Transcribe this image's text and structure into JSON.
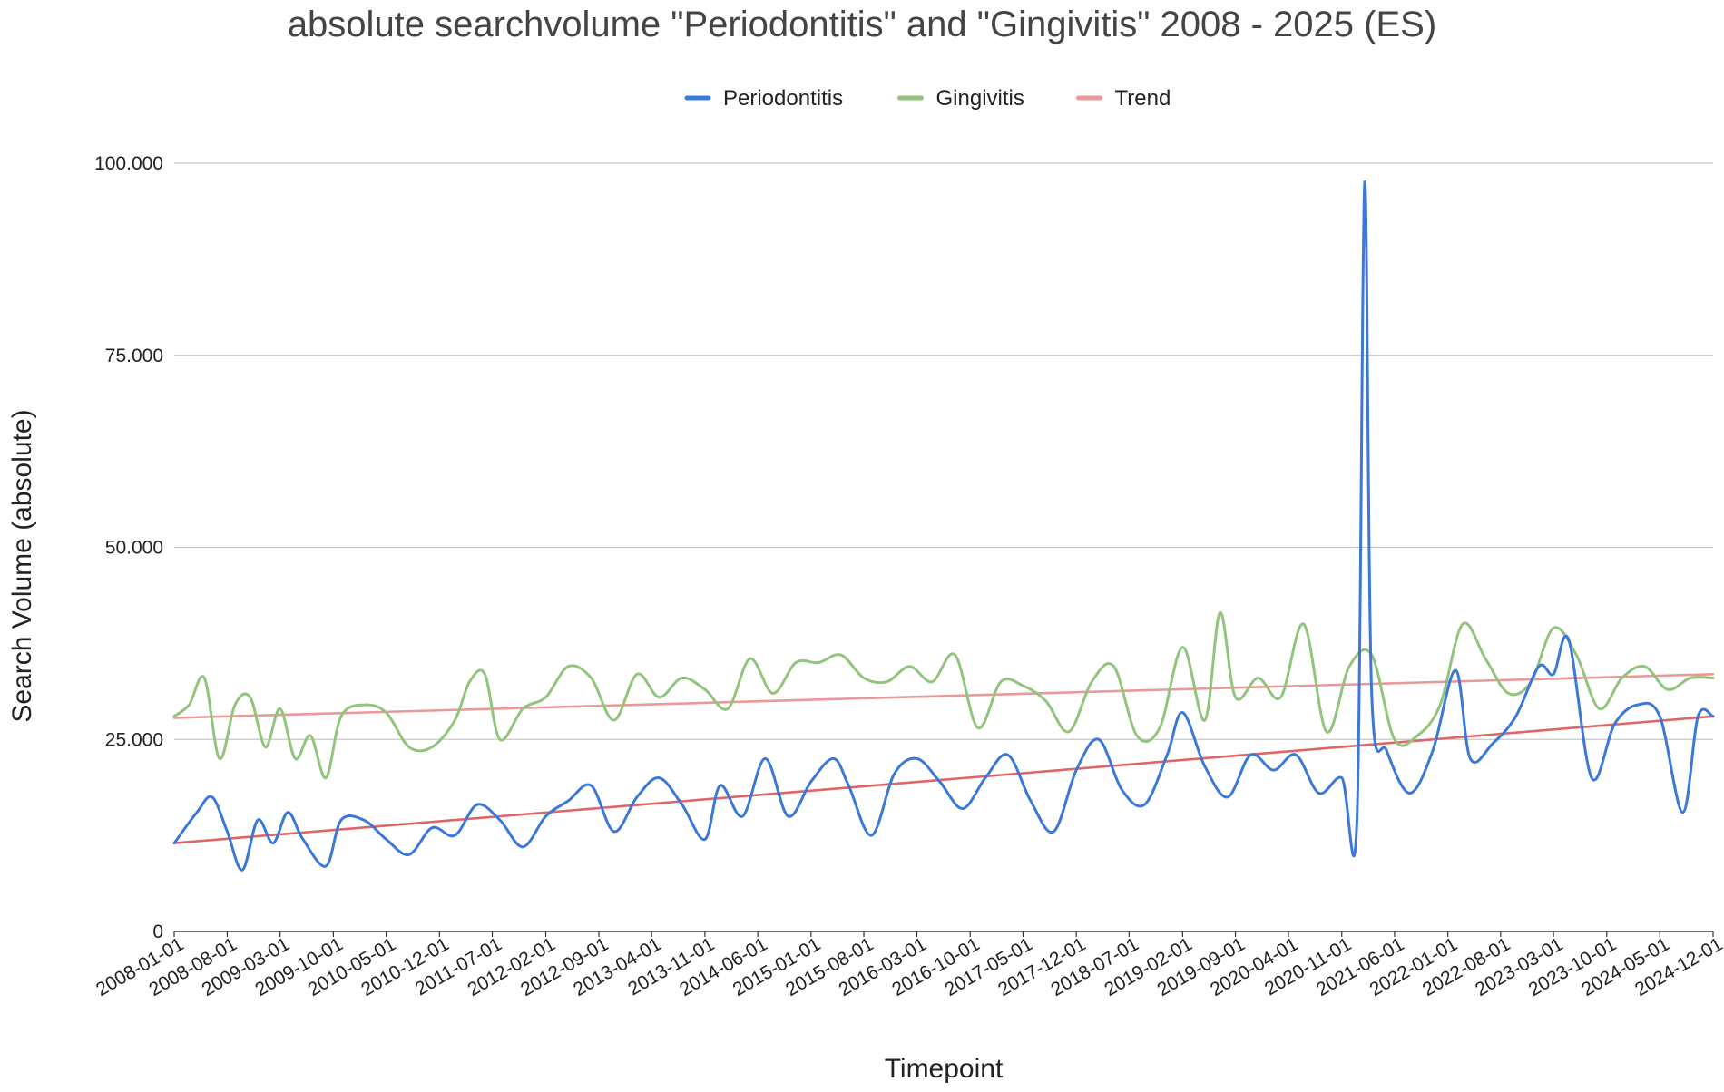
{
  "chart_data": {
    "type": "line",
    "title": "absolute searchvolume \"Periodontitis\" and \"Gingivitis\" 2008 - 2025 (ES)",
    "xlabel": "Timepoint",
    "ylabel": "Search Volume (absolute)",
    "ylim": [
      0,
      100000
    ],
    "y_ticks": [
      {
        "value": 0,
        "label": "0"
      },
      {
        "value": 25000,
        "label": "25.000"
      },
      {
        "value": 50000,
        "label": "50.000"
      },
      {
        "value": 75000,
        "label": "75.000"
      },
      {
        "value": 100000,
        "label": "100.000"
      }
    ],
    "x_tick_labels": [
      "2008-01-01",
      "2008-08-01",
      "2009-03-01",
      "2009-10-01",
      "2010-05-01",
      "2010-12-01",
      "2011-07-01",
      "2012-02-01",
      "2012-09-01",
      "2013-04-01",
      "2013-11-01",
      "2014-06-01",
      "2015-01-01",
      "2015-08-01",
      "2016-03-01",
      "2016-10-01",
      "2017-05-01",
      "2017-12-01",
      "2018-07-01",
      "2019-02-01",
      "2019-09-01",
      "2020-04-01",
      "2020-11-01",
      "2021-06-01",
      "2022-01-01",
      "2022-08-01",
      "2023-03-01",
      "2023-10-01",
      "2024-05-01",
      "2024-12-01"
    ],
    "x_start": "2008-01-01",
    "x_end": "2024-12-01",
    "grid": "horizontal",
    "legend_position": "top-center",
    "series": [
      {
        "name": "Periodontitis",
        "color": "#3c78d8",
        "x": [
          "2008-01-01",
          "2008-04-01",
          "2008-06-01",
          "2008-08-01",
          "2008-10-01",
          "2008-12-01",
          "2009-02-01",
          "2009-04-01",
          "2009-06-01",
          "2009-09-01",
          "2009-11-01",
          "2010-02-01",
          "2010-05-01",
          "2010-08-01",
          "2010-11-01",
          "2011-02-01",
          "2011-05-01",
          "2011-08-01",
          "2011-11-01",
          "2012-02-01",
          "2012-05-01",
          "2012-08-01",
          "2012-11-01",
          "2013-02-01",
          "2013-05-01",
          "2013-08-01",
          "2013-11-01",
          "2014-01-01",
          "2014-04-01",
          "2014-07-01",
          "2014-10-01",
          "2015-01-01",
          "2015-04-01",
          "2015-06-01",
          "2015-09-01",
          "2015-12-01",
          "2016-03-01",
          "2016-06-01",
          "2016-09-01",
          "2016-12-01",
          "2017-03-01",
          "2017-06-01",
          "2017-09-01",
          "2017-12-01",
          "2018-03-01",
          "2018-06-01",
          "2018-09-01",
          "2018-12-01",
          "2019-02-01",
          "2019-05-01",
          "2019-08-01",
          "2019-11-01",
          "2020-02-01",
          "2020-05-01",
          "2020-08-01",
          "2020-11-01",
          "2021-01-01",
          "2021-02-01",
          "2021-03-01",
          "2021-05-01",
          "2021-08-01",
          "2021-11-01",
          "2022-02-01",
          "2022-04-01",
          "2022-07-01",
          "2022-10-01",
          "2023-01-01",
          "2023-03-01",
          "2023-05-01",
          "2023-08-01",
          "2023-11-01",
          "2024-02-01",
          "2024-05-01",
          "2024-08-01",
          "2024-10-01",
          "2024-12-01"
        ],
        "values": [
          11500,
          15500,
          17500,
          13000,
          8000,
          14500,
          11500,
          15500,
          12000,
          8500,
          14500,
          14500,
          12000,
          10000,
          13500,
          12500,
          16500,
          14500,
          11000,
          15000,
          17000,
          19000,
          13000,
          17500,
          20000,
          16500,
          12000,
          19000,
          15000,
          22500,
          15000,
          19500,
          22500,
          19000,
          12500,
          20500,
          22500,
          19500,
          16000,
          20000,
          23000,
          17000,
          13000,
          21000,
          25000,
          18500,
          16500,
          23000,
          28500,
          21500,
          17500,
          23000,
          21000,
          23000,
          18000,
          20000,
          14500,
          97500,
          31000,
          23500,
          18000,
          23500,
          34000,
          22500,
          24500,
          28000,
          34500,
          33500,
          38000,
          20000,
          27000,
          29500,
          28000,
          15500,
          28000,
          28000
        ]
      },
      {
        "name": "Gingivitis",
        "color": "#93c47d",
        "x": [
          "2008-01-01",
          "2008-03-01",
          "2008-05-01",
          "2008-07-01",
          "2008-09-01",
          "2008-11-01",
          "2009-01-01",
          "2009-03-01",
          "2009-05-01",
          "2009-07-01",
          "2009-09-01",
          "2009-11-01",
          "2010-02-01",
          "2010-05-01",
          "2010-08-01",
          "2010-11-01",
          "2011-02-01",
          "2011-04-01",
          "2011-06-01",
          "2011-08-01",
          "2011-11-01",
          "2012-02-01",
          "2012-05-01",
          "2012-08-01",
          "2012-11-01",
          "2013-02-01",
          "2013-05-01",
          "2013-08-01",
          "2013-11-01",
          "2014-02-01",
          "2014-05-01",
          "2014-08-01",
          "2014-11-01",
          "2015-02-01",
          "2015-05-01",
          "2015-08-01",
          "2015-11-01",
          "2016-02-01",
          "2016-05-01",
          "2016-08-01",
          "2016-11-01",
          "2017-02-01",
          "2017-05-01",
          "2017-08-01",
          "2017-11-01",
          "2018-02-01",
          "2018-05-01",
          "2018-08-01",
          "2018-11-01",
          "2019-02-01",
          "2019-05-01",
          "2019-07-01",
          "2019-09-01",
          "2019-12-01",
          "2020-03-01",
          "2020-06-01",
          "2020-09-01",
          "2020-12-01",
          "2021-03-01",
          "2021-06-01",
          "2021-09-01",
          "2021-12-01",
          "2022-03-01",
          "2022-06-01",
          "2022-09-01",
          "2022-12-01",
          "2023-03-01",
          "2023-06-01",
          "2023-09-01",
          "2023-12-01",
          "2024-03-01",
          "2024-06-01",
          "2024-09-01",
          "2024-12-01"
        ],
        "values": [
          28000,
          29500,
          33000,
          22500,
          29500,
          30500,
          24000,
          29000,
          22500,
          25500,
          20000,
          28000,
          29500,
          28500,
          24000,
          24000,
          27500,
          32500,
          33500,
          25000,
          29000,
          30500,
          34500,
          33000,
          27500,
          33500,
          30500,
          33000,
          31500,
          29000,
          35500,
          31000,
          35000,
          35000,
          36000,
          33000,
          32500,
          34500,
          32500,
          36000,
          26500,
          32500,
          32000,
          30000,
          26000,
          32500,
          34500,
          25500,
          26500,
          37000,
          27500,
          41500,
          30500,
          33000,
          30500,
          40000,
          26000,
          34500,
          36000,
          25000,
          25500,
          29500,
          40000,
          35500,
          31000,
          32500,
          39500,
          36000,
          29000,
          33000,
          34500,
          31500,
          33000,
          33000
        ]
      },
      {
        "name": "Trend",
        "color": "#ea9999",
        "x": [
          "2008-01-01",
          "2024-12-01"
        ],
        "values": [
          27800,
          33500
        ]
      },
      {
        "name": "",
        "color": "#e06666",
        "x": [
          "2008-01-01",
          "2024-12-01"
        ],
        "values": [
          11500,
          28000
        ]
      }
    ]
  }
}
